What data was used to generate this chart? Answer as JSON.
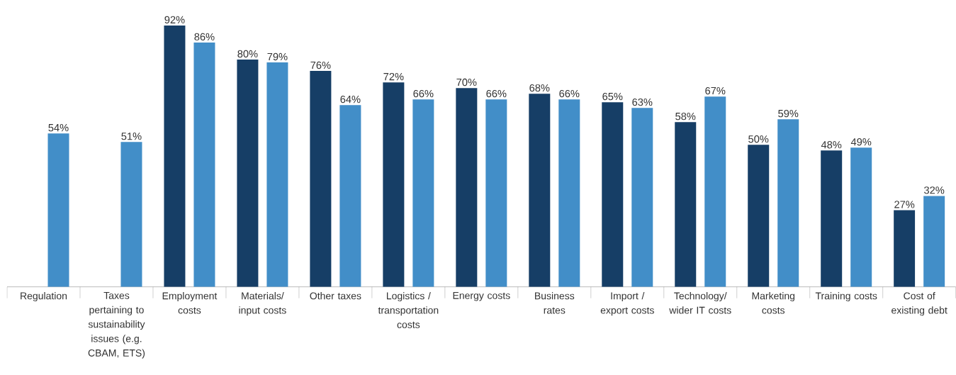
{
  "chart_data": {
    "type": "bar",
    "categories": [
      "Regulation",
      "Taxes pertaining to sustainability issues (e.g. CBAM, ETS)",
      "Employment costs",
      "Materials/ input costs",
      "Other taxes",
      "Logistics / transportation costs",
      "Energy costs",
      "Business rates",
      "Import / export costs",
      "Technology/ wider IT costs",
      "Marketing costs",
      "Training costs",
      "Cost of existing debt"
    ],
    "series": [
      {
        "color": "#163e66",
        "values": [
          null,
          null,
          92,
          80,
          76,
          72,
          70,
          68,
          65,
          58,
          50,
          48,
          27
        ],
        "value_labels": [
          null,
          null,
          "92%",
          "80%",
          "76%",
          "72%",
          "70%",
          "68%",
          "65%",
          "58%",
          "50%",
          "48%",
          "27%"
        ]
      },
      {
        "color": "#428ec8",
        "values": [
          54,
          51,
          86,
          79,
          64,
          66,
          66,
          66,
          63,
          67,
          59,
          49,
          32
        ],
        "value_labels": [
          "54%",
          "51%",
          "86%",
          "79%",
          "64%",
          "66%",
          "66%",
          "66%",
          "63%",
          "67%",
          "59%",
          "49%",
          "32%"
        ]
      }
    ]
  }
}
